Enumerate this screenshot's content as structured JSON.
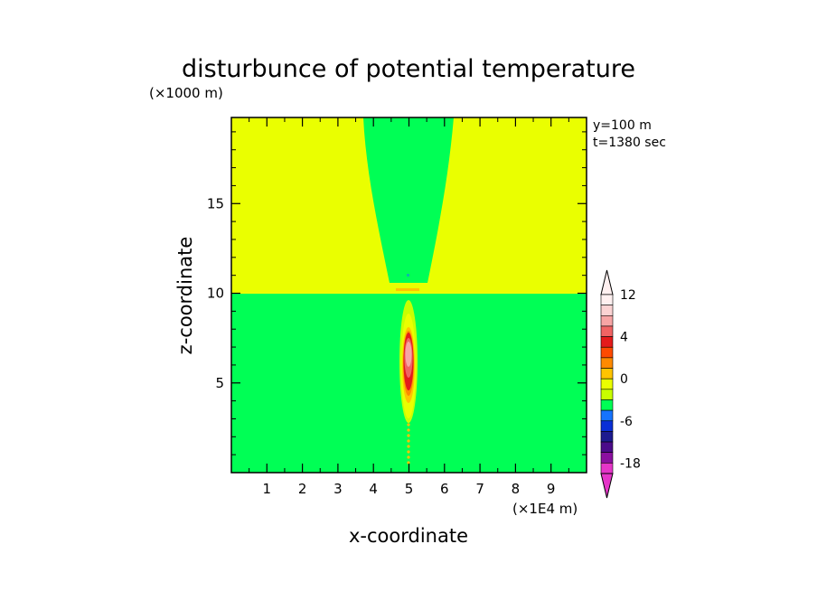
{
  "chart_data": {
    "type": "heatmap",
    "title": "disturbunce of potential temperature",
    "xlabel": "x-coordinate",
    "ylabel": "z-coordinate",
    "x_unit": "(×1E4 m)",
    "y_unit": "(×1000 m)",
    "annotations": [
      "y=100 m",
      "t=1380 sec"
    ],
    "xlim": [
      0,
      10
    ],
    "ylim": [
      0,
      19.8
    ],
    "x_ticks": [
      "1",
      "2",
      "3",
      "4",
      "5",
      "6",
      "7",
      "8",
      "9"
    ],
    "y_ticks": [
      "5",
      "10",
      "15"
    ],
    "colorbar": {
      "labels": [
        "12",
        "4",
        "0",
        "-6",
        "-18"
      ],
      "label_values": [
        12,
        4,
        0,
        -6,
        -18
      ],
      "levels": [
        -18,
        -15,
        -12,
        -9,
        -6,
        -3,
        -2,
        -1,
        0,
        1,
        2,
        3,
        4,
        6,
        8,
        10
      ],
      "colors": [
        "#e535c8",
        "#8b0fa0",
        "#4b0b8a",
        "#1d1b8f",
        "#0a2fd6",
        "#1673ff",
        "#00ff55",
        "#c8ff00",
        "#eaff00",
        "#ffc400",
        "#ff8a00",
        "#ff4a00",
        "#e41b1b",
        "#f06464",
        "#f7a5a5",
        "#fbd3d3",
        "#fff0f0"
      ]
    },
    "regions": {
      "upper_background": {
        "z_range": [
          10.3,
          19.8
        ],
        "color": "#eaff00"
      },
      "lower_background": {
        "z_range": [
          0,
          10.3
        ],
        "color": "#00ff55"
      },
      "upper_plume": {
        "x_top": [
          3.7,
          6.3
        ],
        "x_bottom": [
          4.5,
          5.5
        ],
        "z_range": [
          10.3,
          19.8
        ],
        "color": "#00ff55"
      },
      "thermal_core": {
        "x_center": 5,
        "z_range": [
          0.5,
          9.5
        ],
        "peak_value": 12
      }
    }
  }
}
